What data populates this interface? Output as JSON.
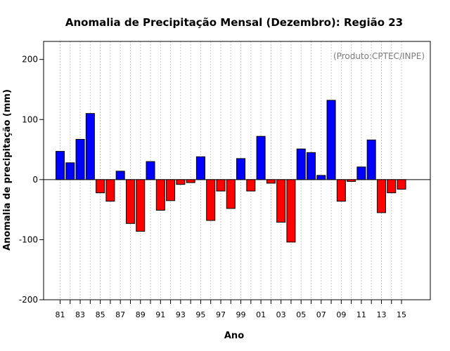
{
  "chart_data": {
    "type": "bar",
    "title": "Anomalia de Precipitação Mensal (Dezembro): Região 23",
    "xlabel": "Ano",
    "ylabel": "Anomalia de precipitação (mm)",
    "credit": "(Produto:CPTEC/INPE)",
    "ylim": [
      -200,
      230
    ],
    "yticks": [
      -200,
      -100,
      0,
      100,
      200
    ],
    "xtick_labels": [
      "81",
      "83",
      "85",
      "87",
      "89",
      "91",
      "93",
      "95",
      "97",
      "99",
      "01",
      "03",
      "05",
      "07",
      "09",
      "11",
      "13",
      "15"
    ],
    "grid": true,
    "categories": [
      "1981",
      "1982",
      "1983",
      "1984",
      "1985",
      "1986",
      "1987",
      "1988",
      "1989",
      "1990",
      "1991",
      "1992",
      "1993",
      "1994",
      "1995",
      "1996",
      "1997",
      "1998",
      "1999",
      "2000",
      "2001",
      "2002",
      "2003",
      "2004",
      "2005",
      "2006",
      "2007",
      "2008",
      "2009",
      "2010",
      "2011",
      "2012",
      "2013",
      "2014",
      "2015"
    ],
    "values": [
      47,
      28,
      67,
      110,
      -22,
      -36,
      14,
      -73,
      -86,
      30,
      -51,
      -35,
      -8,
      -5,
      38,
      -68,
      -19,
      -48,
      35,
      -19,
      72,
      -6,
      -71,
      -104,
      51,
      45,
      7,
      132,
      -36,
      -3,
      21,
      66,
      -55,
      -22,
      -16
    ],
    "colors": {
      "positive": "#0000ff",
      "negative": "#ff0000",
      "grid": "#c8c8c8",
      "zero_line": "#000000"
    }
  }
}
